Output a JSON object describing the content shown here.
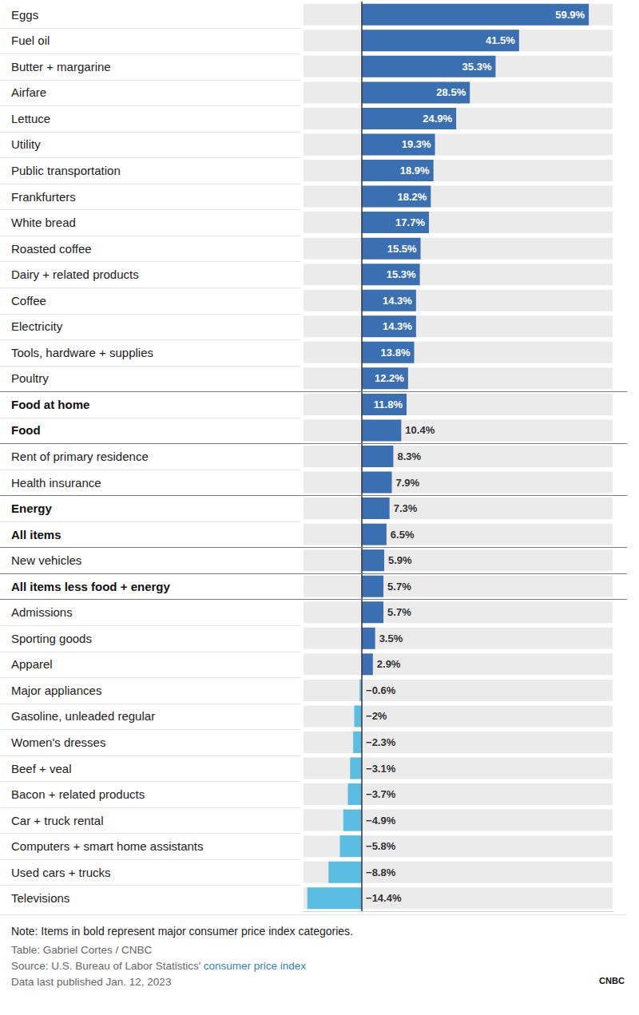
{
  "chart_data": {
    "type": "bar",
    "orientation": "horizontal",
    "categories": [
      "Eggs",
      "Fuel oil",
      "Butter + margarine",
      "Airfare",
      "Lettuce",
      "Utility",
      "Public transportation",
      "Frankfurters",
      "White bread",
      "Roasted coffee",
      "Dairy + related products",
      "Coffee",
      "Electricity",
      "Tools, hardware + supplies",
      "Poultry",
      "Food at home",
      "Food",
      "Rent of primary residence",
      "Health insurance",
      "Energy",
      "All items",
      "New vehicles",
      "All items less food + energy",
      "Admissions",
      "Sporting goods",
      "Apparel",
      "Major appliances",
      "Gasoline, unleaded regular",
      "Women's dresses",
      "Beef + veal",
      "Bacon + related products",
      "Car + truck rental",
      "Computers + smart home assistants",
      "Used cars + trucks",
      "Televisions"
    ],
    "values": [
      59.9,
      41.5,
      35.3,
      28.5,
      24.9,
      19.3,
      18.9,
      18.2,
      17.7,
      15.5,
      15.3,
      14.3,
      14.3,
      13.8,
      12.2,
      11.8,
      10.4,
      8.3,
      7.9,
      7.3,
      6.5,
      5.9,
      5.7,
      5.7,
      3.5,
      2.9,
      -0.6,
      -2,
      -2.3,
      -3.1,
      -3.7,
      -4.9,
      -5.8,
      -8.8,
      -14.4
    ],
    "value_labels": [
      "59.9%",
      "41.5%",
      "35.3%",
      "28.5%",
      "24.9%",
      "19.3%",
      "18.9%",
      "18.2%",
      "17.7%",
      "15.5%",
      "15.3%",
      "14.3%",
      "14.3%",
      "13.8%",
      "12.2%",
      "11.8%",
      "10.4%",
      "8.3%",
      "7.9%",
      "7.3%",
      "6.5%",
      "5.9%",
      "5.7%",
      "5.7%",
      "3.5%",
      "2.9%",
      "−0.6%",
      "−2%",
      "−2.3%",
      "−3.1%",
      "−3.7%",
      "−4.9%",
      "−5.8%",
      "−8.8%",
      "−14.4%"
    ],
    "major_category": [
      false,
      false,
      false,
      false,
      false,
      false,
      false,
      false,
      false,
      false,
      false,
      false,
      false,
      false,
      false,
      true,
      true,
      false,
      false,
      true,
      true,
      false,
      true,
      false,
      false,
      false,
      false,
      false,
      false,
      false,
      false,
      false,
      false,
      false,
      false
    ],
    "colors": [
      "#3a6fb1",
      "#3a6fb1",
      "#3a6fb1",
      "#3a6fb1",
      "#3a6fb1",
      "#3a6fb1",
      "#3a6fb1",
      "#3a6fb1",
      "#3a6fb1",
      "#3a6fb1",
      "#3a6fb1",
      "#3a6fb1",
      "#3a6fb1",
      "#3a6fb1",
      "#3a6fb1",
      "#3a6fb1",
      "#3a6fb1",
      "#3a6fb1",
      "#3a6fb1",
      "#3a6fb1",
      "#3a6fb1",
      "#3a6fb1",
      "#3a6fb1",
      "#3a6fb1",
      "#3a6fb1",
      "#3a6fb1",
      "#5bbde2",
      "#5bbde2",
      "#5bbde2",
      "#5bbde2",
      "#5bbde2",
      "#5bbde2",
      "#5bbde2",
      "#5bbde2",
      "#5bbde2"
    ],
    "xlim": [
      -15.4,
      66.2
    ],
    "grid": false,
    "data_labels": true,
    "tick_labels": "y",
    "annotations": [
      "Note: Items in bold represent major consumer price index categories.",
      "Table: Gabriel Cortes / CNBC"
    ],
    "source": {
      "text": "Source: U.S. Bureau of Labor Statistics'",
      "link": "consumer price index"
    },
    "date_note": "Data last published Jan. 12, 2023",
    "logo": "CNBC"
  }
}
